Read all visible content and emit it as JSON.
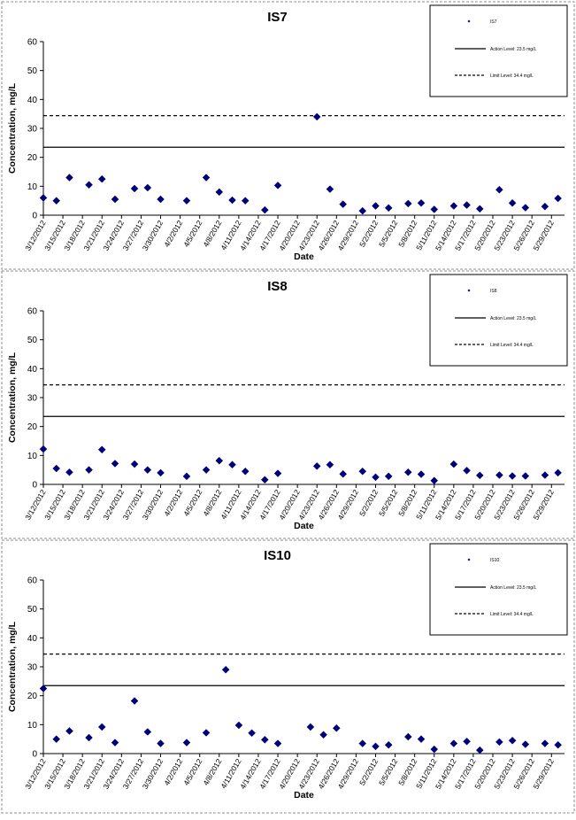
{
  "chart_data": [
    {
      "type": "scatter",
      "title": "IS7",
      "xlabel": "Date",
      "ylabel": "Concentration, mg/L",
      "ylim": [
        0,
        60
      ],
      "yticks": [
        0,
        10,
        20,
        30,
        40,
        50,
        60
      ],
      "x_tick_labels": [
        "3/12/2012",
        "3/15/2012",
        "3/18/2012",
        "3/21/2012",
        "3/24/2012",
        "3/27/2012",
        "3/30/2012",
        "4/2/2012",
        "4/5/2012",
        "4/8/2012",
        "4/11/2012",
        "4/14/2012",
        "4/17/2012",
        "4/20/2012",
        "4/23/2012",
        "4/26/2012",
        "4/29/2012",
        "5/2/2012",
        "5/5/2012",
        "5/8/2012",
        "5/11/2012",
        "5/14/2012",
        "5/17/2012",
        "5/20/2012",
        "5/23/2012",
        "5/26/2012",
        "5/29/2012"
      ],
      "xlim": [
        "3/12/2012",
        "5/31/2012"
      ],
      "grid": false,
      "legend_position": "top-right",
      "legend": [
        "IS7",
        "Action Level: 23.5 mg/L",
        "Limit Level: 34.4 mg/L"
      ],
      "action_level": 23.5,
      "limit_level": 34.4,
      "series": [
        {
          "name": "IS7",
          "points": [
            [
              "3/12/2012",
              6
            ],
            [
              "3/14/2012",
              5
            ],
            [
              "3/16/2012",
              13
            ],
            [
              "3/19/2012",
              10.5
            ],
            [
              "3/21/2012",
              12.5
            ],
            [
              "3/23/2012",
              5.5
            ],
            [
              "3/26/2012",
              9.2
            ],
            [
              "3/28/2012",
              9.5
            ],
            [
              "3/30/2012",
              5.5
            ],
            [
              "4/3/2012",
              5
            ],
            [
              "4/6/2012",
              13
            ],
            [
              "4/8/2012",
              8
            ],
            [
              "4/10/2012",
              5.2
            ],
            [
              "4/12/2012",
              5
            ],
            [
              "4/15/2012",
              1.8
            ],
            [
              "4/17/2012",
              10.3
            ],
            [
              "4/23/2012",
              34
            ],
            [
              "4/25/2012",
              9
            ],
            [
              "4/27/2012",
              3.8
            ],
            [
              "4/30/2012",
              1.5
            ],
            [
              "5/2/2012",
              3.2
            ],
            [
              "5/4/2012",
              2.5
            ],
            [
              "5/7/2012",
              4
            ],
            [
              "5/9/2012",
              4.2
            ],
            [
              "5/11/2012",
              2
            ],
            [
              "5/14/2012",
              3.2
            ],
            [
              "5/16/2012",
              3.5
            ],
            [
              "5/18/2012",
              2.2
            ],
            [
              "5/21/2012",
              8.8
            ],
            [
              "5/23/2012",
              4.2
            ],
            [
              "5/25/2012",
              2.6
            ],
            [
              "5/28/2012",
              3
            ],
            [
              "5/30/2012",
              5.8
            ]
          ]
        }
      ]
    },
    {
      "type": "scatter",
      "title": "IS8",
      "xlabel": "Date",
      "ylabel": "Concentration, mg/L",
      "ylim": [
        0,
        60
      ],
      "yticks": [
        0,
        10,
        20,
        30,
        40,
        50,
        60
      ],
      "x_tick_labels": [
        "3/12/2012",
        "3/15/2012",
        "3/18/2012",
        "3/21/2012",
        "3/24/2012",
        "3/27/2012",
        "3/30/2012",
        "4/2/2012",
        "4/5/2012",
        "4/8/2012",
        "4/11/2012",
        "4/14/2012",
        "4/17/2012",
        "4/20/2012",
        "4/23/2012",
        "4/26/2012",
        "4/29/2012",
        "5/2/2012",
        "5/5/2012",
        "5/8/2012",
        "5/11/2012",
        "5/14/2012",
        "5/17/2012",
        "5/20/2012",
        "5/23/2012",
        "5/26/2012",
        "5/29/2012"
      ],
      "xlim": [
        "3/12/2012",
        "5/31/2012"
      ],
      "grid": false,
      "legend_position": "top-right",
      "legend": [
        "IS8",
        "Action Level: 23.5 mg/L",
        "Limit Level: 34.4 mg/L"
      ],
      "action_level": 23.5,
      "limit_level": 34.4,
      "series": [
        {
          "name": "IS8",
          "points": [
            [
              "3/12/2012",
              12.2
            ],
            [
              "3/14/2012",
              5.5
            ],
            [
              "3/16/2012",
              4.2
            ],
            [
              "3/19/2012",
              5
            ],
            [
              "3/21/2012",
              12
            ],
            [
              "3/23/2012",
              7.2
            ],
            [
              "3/26/2012",
              7
            ],
            [
              "3/28/2012",
              5
            ],
            [
              "3/30/2012",
              4
            ],
            [
              "4/3/2012",
              2.8
            ],
            [
              "4/6/2012",
              5
            ],
            [
              "4/8/2012",
              8.2
            ],
            [
              "4/10/2012",
              6.8
            ],
            [
              "4/12/2012",
              4.5
            ],
            [
              "4/15/2012",
              1.6
            ],
            [
              "4/17/2012",
              3.8
            ],
            [
              "4/23/2012",
              6.3
            ],
            [
              "4/25/2012",
              6.8
            ],
            [
              "4/27/2012",
              3.6
            ],
            [
              "4/30/2012",
              4.5
            ],
            [
              "5/2/2012",
              2.5
            ],
            [
              "5/4/2012",
              2.8
            ],
            [
              "5/7/2012",
              4.2
            ],
            [
              "5/9/2012",
              3.5
            ],
            [
              "5/11/2012",
              1.3
            ],
            [
              "5/14/2012",
              7
            ],
            [
              "5/16/2012",
              4.8
            ],
            [
              "5/18/2012",
              3.1
            ],
            [
              "5/21/2012",
              3.2
            ],
            [
              "5/23/2012",
              2.9
            ],
            [
              "5/25/2012",
              2.9
            ],
            [
              "5/28/2012",
              3.2
            ],
            [
              "5/30/2012",
              4
            ]
          ]
        }
      ]
    },
    {
      "type": "scatter",
      "title": "IS10",
      "xlabel": "Date",
      "ylabel": "Concentration, mg/L",
      "ylim": [
        0,
        60
      ],
      "yticks": [
        0,
        10,
        20,
        30,
        40,
        50,
        60
      ],
      "x_tick_labels": [
        "3/12/2012",
        "3/15/2012",
        "3/18/2012",
        "3/21/2012",
        "3/24/2012",
        "3/27/2012",
        "3/30/2012",
        "4/2/2012",
        "4/5/2012",
        "4/8/2012",
        "4/11/2012",
        "4/14/2012",
        "4/17/2012",
        "4/20/2012",
        "4/23/2012",
        "4/26/2012",
        "4/29/2012",
        "5/2/2012",
        "5/5/2012",
        "5/8/2012",
        "5/11/2012",
        "5/14/2012",
        "5/17/2012",
        "5/20/2012",
        "5/23/2012",
        "5/26/2012",
        "5/29/2012"
      ],
      "xlim": [
        "3/12/2012",
        "5/31/2012"
      ],
      "grid": false,
      "legend_position": "top-right",
      "legend": [
        "IS10",
        "Action Level: 23.5 mg/L",
        "Limit Level: 34.4 mg/L"
      ],
      "action_level": 23.5,
      "limit_level": 34.4,
      "series": [
        {
          "name": "IS10",
          "points": [
            [
              "3/12/2012",
              22.5
            ],
            [
              "3/14/2012",
              5
            ],
            [
              "3/16/2012",
              7.8
            ],
            [
              "3/19/2012",
              5.5
            ],
            [
              "3/21/2012",
              9.2
            ],
            [
              "3/23/2012",
              3.8
            ],
            [
              "3/26/2012",
              18.2
            ],
            [
              "3/28/2012",
              7.5
            ],
            [
              "3/30/2012",
              3.5
            ],
            [
              "4/3/2012",
              3.8
            ],
            [
              "4/6/2012",
              7.2
            ],
            [
              "4/9/2012",
              29
            ],
            [
              "4/11/2012",
              9.8
            ],
            [
              "4/13/2012",
              7.1
            ],
            [
              "4/15/2012",
              4.8
            ],
            [
              "4/17/2012",
              3.5
            ],
            [
              "4/22/2012",
              9.2
            ],
            [
              "4/24/2012",
              6.5
            ],
            [
              "4/26/2012",
              8.8
            ],
            [
              "4/30/2012",
              3.5
            ],
            [
              "5/2/2012",
              2.5
            ],
            [
              "5/4/2012",
              3
            ],
            [
              "5/7/2012",
              5.8
            ],
            [
              "5/9/2012",
              5
            ],
            [
              "5/11/2012",
              1.5
            ],
            [
              "5/14/2012",
              3.5
            ],
            [
              "5/16/2012",
              4.2
            ],
            [
              "5/18/2012",
              1.2
            ],
            [
              "5/21/2012",
              4
            ],
            [
              "5/23/2012",
              4.5
            ],
            [
              "5/25/2012",
              3.2
            ],
            [
              "5/28/2012",
              3.5
            ],
            [
              "5/30/2012",
              3
            ]
          ]
        }
      ]
    }
  ],
  "colors": {
    "marker": "#00007a",
    "line": "#000000",
    "text": "#000000",
    "frame": "#8c8c8c",
    "background": "#ffffff"
  }
}
